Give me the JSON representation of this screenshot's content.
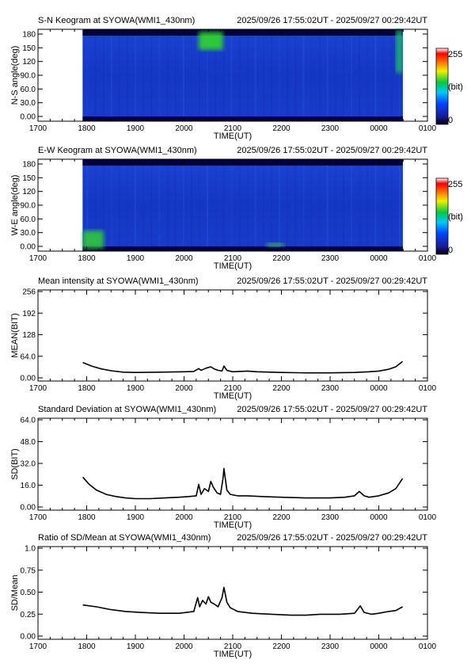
{
  "figure": {
    "x_ticks": [
      "1700",
      "1800",
      "1900",
      "2000",
      "2100",
      "2200",
      "2300",
      "0000",
      "0100"
    ],
    "x_label": "TIME(UT)"
  },
  "chart_data": [
    {
      "type": "heatmap",
      "title": "S-N Keogram at SYOWA(WMI1_430nm)",
      "time_range": "2025/09/26 17:55:02UT - 2025/09/27 00:29:42UT",
      "xlabel": "TIME(UT)",
      "ylabel": "N-S angle(deg)",
      "yticks": [
        "180",
        "150",
        "120",
        "90.0",
        "60.0",
        "30.0",
        "0.00"
      ],
      "colorbar": {
        "max_label": "255",
        "unit_label": "(bit)",
        "min_label": "0",
        "range": [
          0,
          255
        ]
      },
      "x_data_range_hours": [
        17.917,
        24.494
      ],
      "ylim": [
        0,
        180
      ],
      "background_color": "#1636c8",
      "features": [
        {
          "t": [
            20.3,
            20.8
          ],
          "angle": [
            140,
            175
          ],
          "level": "bright",
          "color": "#30e020"
        },
        {
          "t": [
            24.35,
            24.49
          ],
          "angle": [
            95,
            178
          ],
          "level": "bright",
          "color": "#20c060"
        }
      ]
    },
    {
      "type": "heatmap",
      "title": "E-W Keogram at SYOWA(WMI1_430nm)",
      "time_range": "2025/09/26 17:55:02UT - 2025/09/27 00:29:42UT",
      "xlabel": "TIME(UT)",
      "ylabel": "W-E angle(deg)",
      "yticks": [
        "180",
        "150",
        "120",
        "90.0",
        "60.0",
        "30.0",
        "0.00"
      ],
      "colorbar": {
        "max_label": "255",
        "unit_label": "(bit)",
        "min_label": "0",
        "range": [
          0,
          255
        ]
      },
      "x_data_range_hours": [
        17.917,
        24.494
      ],
      "ylim": [
        0,
        180
      ],
      "background_color": "#1636c8",
      "features": [
        {
          "t": [
            17.917,
            18.35
          ],
          "angle": [
            5,
            40
          ],
          "level": "bright",
          "color": "#30d030"
        },
        {
          "t": [
            21.7,
            22.05
          ],
          "angle": [
            8,
            16
          ],
          "level": "medium",
          "color": "#40c050"
        }
      ]
    },
    {
      "type": "line",
      "title": "Mean intensity at SYOWA(WMI1_430nm)",
      "time_range": "2025/09/26 17:55:02UT - 2025/09/27 00:29:42UT",
      "xlabel": "TIME(UT)",
      "ylabel": "MEAN(BIT)",
      "yticks": [
        "256",
        "192",
        "128",
        "64.0",
        "0.00"
      ],
      "ylim": [
        0,
        256
      ],
      "x_unit": "hours UT since 00:00 of 2025/09/26",
      "x": [
        17.92,
        18.1,
        18.3,
        18.5,
        18.75,
        19.0,
        19.5,
        20.0,
        20.2,
        20.3,
        20.35,
        20.45,
        20.55,
        20.62,
        20.7,
        20.78,
        20.82,
        20.88,
        21.0,
        21.3,
        21.5,
        22.0,
        22.5,
        23.0,
        23.5,
        23.8,
        24.0,
        24.2,
        24.35,
        24.49
      ],
      "y": [
        52,
        42,
        34,
        29,
        25,
        24,
        25,
        26,
        27,
        35,
        30,
        36,
        40,
        34,
        30,
        28,
        42,
        30,
        26,
        28,
        26,
        24,
        23,
        23,
        24,
        26,
        28,
        33,
        40,
        55
      ]
    },
    {
      "type": "line",
      "title": "Standard Deviation at SYOWA(WMI1_430nm)",
      "time_range": "2025/09/26 17:55:02UT - 2025/09/27 00:29:42UT",
      "xlabel": "TIME(UT)",
      "ylabel": "SD(BIT)",
      "yticks": [
        "64.0",
        "48.0",
        "32.0",
        "16.0",
        "0.00"
      ],
      "ylim": [
        0,
        64
      ],
      "x": [
        17.92,
        18.05,
        18.2,
        18.4,
        18.6,
        18.8,
        19.0,
        19.3,
        19.6,
        19.9,
        20.1,
        20.25,
        20.3,
        20.35,
        20.42,
        20.5,
        20.55,
        20.6,
        20.68,
        20.75,
        20.8,
        20.82,
        20.88,
        20.95,
        21.1,
        21.3,
        21.6,
        22.0,
        22.5,
        23.0,
        23.3,
        23.5,
        23.6,
        23.7,
        23.8,
        24.0,
        24.2,
        24.35,
        24.49
      ],
      "y": [
        23,
        18,
        14,
        11,
        9.5,
        8.5,
        8,
        8,
        8.5,
        9,
        9.5,
        10,
        18,
        11,
        15,
        13,
        20,
        16,
        12,
        11,
        22,
        29,
        14,
        11,
        10,
        10,
        9.5,
        9,
        8.5,
        8.5,
        9,
        10,
        13,
        10,
        9,
        10,
        12,
        15,
        22
      ]
    },
    {
      "type": "line",
      "title": "Ratio of SD/Mean at SYOWA(WMI1_430nm)",
      "time_range": "2025/09/26 17:55:02UT - 2025/09/27 00:29:42UT",
      "xlabel": "TIME(UT)",
      "ylabel": "SD/Mean",
      "yticks": [
        "1.0",
        "0.75",
        "0.50",
        "0.25",
        "0.00"
      ],
      "ylim": [
        0,
        1.0
      ],
      "x": [
        17.92,
        18.2,
        18.5,
        18.8,
        19.1,
        19.5,
        19.9,
        20.2,
        20.28,
        20.32,
        20.38,
        20.45,
        20.5,
        20.55,
        20.62,
        20.7,
        20.78,
        20.82,
        20.88,
        20.95,
        21.1,
        21.4,
        21.8,
        22.2,
        22.5,
        22.8,
        23.2,
        23.5,
        23.62,
        23.7,
        23.85,
        24.0,
        24.2,
        24.35,
        24.49
      ],
      "y": [
        0.37,
        0.35,
        0.32,
        0.3,
        0.29,
        0.28,
        0.28,
        0.3,
        0.45,
        0.35,
        0.42,
        0.38,
        0.46,
        0.4,
        0.38,
        0.35,
        0.45,
        0.56,
        0.4,
        0.34,
        0.3,
        0.28,
        0.27,
        0.26,
        0.26,
        0.27,
        0.27,
        0.28,
        0.36,
        0.29,
        0.27,
        0.28,
        0.3,
        0.31,
        0.35
      ]
    }
  ]
}
